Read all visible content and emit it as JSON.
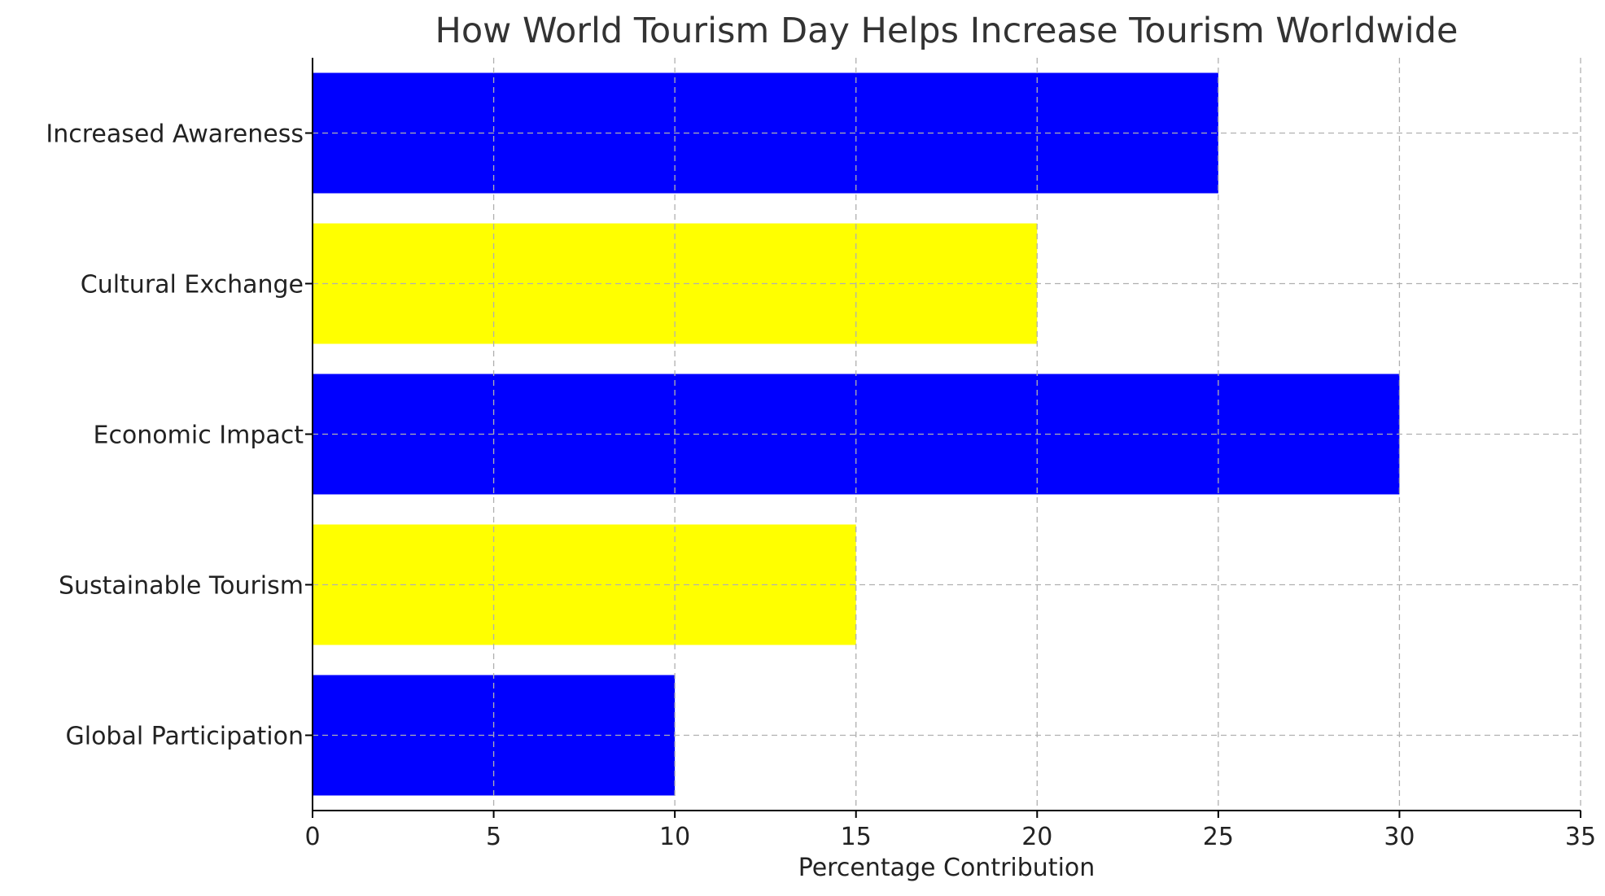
{
  "chart_data": {
    "type": "bar",
    "orientation": "horizontal",
    "title": "How World Tourism Day Helps Increase Tourism Worldwide",
    "xlabel": "Percentage Contribution",
    "ylabel": "",
    "categories": [
      "Global Participation",
      "Sustainable Tourism",
      "Economic Impact",
      "Cultural Exchange",
      "Increased Awareness"
    ],
    "values": [
      10,
      15,
      30,
      20,
      25
    ],
    "colors": [
      "#0000ff",
      "#ffff00",
      "#0000ff",
      "#ffff00",
      "#0000ff"
    ],
    "xlim": [
      0,
      35
    ],
    "xticks": [
      0,
      5,
      10,
      15,
      20,
      25,
      30,
      35
    ],
    "grid": true,
    "legend": "none"
  }
}
